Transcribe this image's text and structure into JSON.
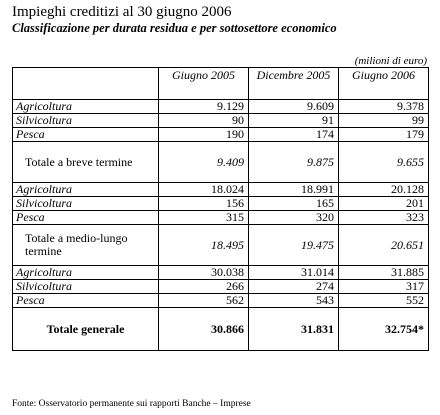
{
  "title": "Impieghi creditizi al 30 giugno 2006",
  "subtitle": "Classificazione per durata residua e per sottosettore economico",
  "unit": "(milioni di euro)",
  "columns": [
    "Giugno 2005",
    "Dicembre 2005",
    "Giugno 2006"
  ],
  "rows": [
    {
      "label": "Agricoltura",
      "values": [
        "9.129",
        "9.609",
        "9.378"
      ]
    },
    {
      "label": "Silvicoltura",
      "values": [
        "90",
        "91",
        "99"
      ]
    },
    {
      "label": "Pesca",
      "values": [
        "190",
        "174",
        "179"
      ]
    },
    {
      "label": "Totale a breve termine",
      "values": [
        "9.409",
        "9.875",
        "9.655"
      ]
    },
    {
      "label": "Agricoltura",
      "values": [
        "18.024",
        "18.991",
        "20.128"
      ]
    },
    {
      "label": "Silvicoltura",
      "values": [
        "156",
        "165",
        "201"
      ]
    },
    {
      "label": "Pesca",
      "values": [
        "315",
        "320",
        "323"
      ]
    },
    {
      "label": "Totale a medio-lungo termine",
      "values": [
        "18.495",
        "19.475",
        "20.651"
      ]
    },
    {
      "label": "Agricoltura",
      "values": [
        "30.038",
        "31.014",
        "31.885"
      ]
    },
    {
      "label": "Silvicoltura",
      "values": [
        "266",
        "274",
        "317"
      ]
    },
    {
      "label": "Pesca",
      "values": [
        "562",
        "543",
        "552"
      ]
    },
    {
      "label": "Totale generale",
      "values": [
        "30.866",
        "31.831",
        "32.754*"
      ]
    }
  ],
  "source": "Fonte: Osservatorio permanente sui rapporti  Banche – Imprese"
}
